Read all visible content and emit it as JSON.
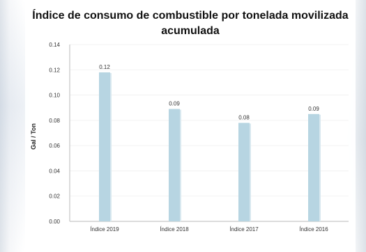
{
  "chart_data": {
    "type": "bar",
    "title": "Índice de consumo de combustible por tonelada movilizada acumulada",
    "title_lines": [
      "Índice de consumo de combustible por tonelada movilizada",
      "acumulada"
    ],
    "xlabel": "",
    "ylabel": "Gal / Ton",
    "categories": [
      "Índice 2019",
      "Índice 2018",
      "Índice 2017",
      "Índice 2016"
    ],
    "values": [
      0.118,
      0.089,
      0.078,
      0.085
    ],
    "data_labels": [
      "0.12",
      "0.09",
      "0.08",
      "0.09"
    ],
    "ylim": [
      0,
      0.14
    ],
    "yticks": [
      "0.00",
      "0.02",
      "0.04",
      "0.06",
      "0.08",
      "0.10",
      "0.12",
      "0.14"
    ],
    "grid": true,
    "colors": {
      "bar": "#b7d5e2",
      "bar_shadow": "#d8e8ef",
      "axis": "#c6c6c6",
      "text": "#333333"
    }
  }
}
